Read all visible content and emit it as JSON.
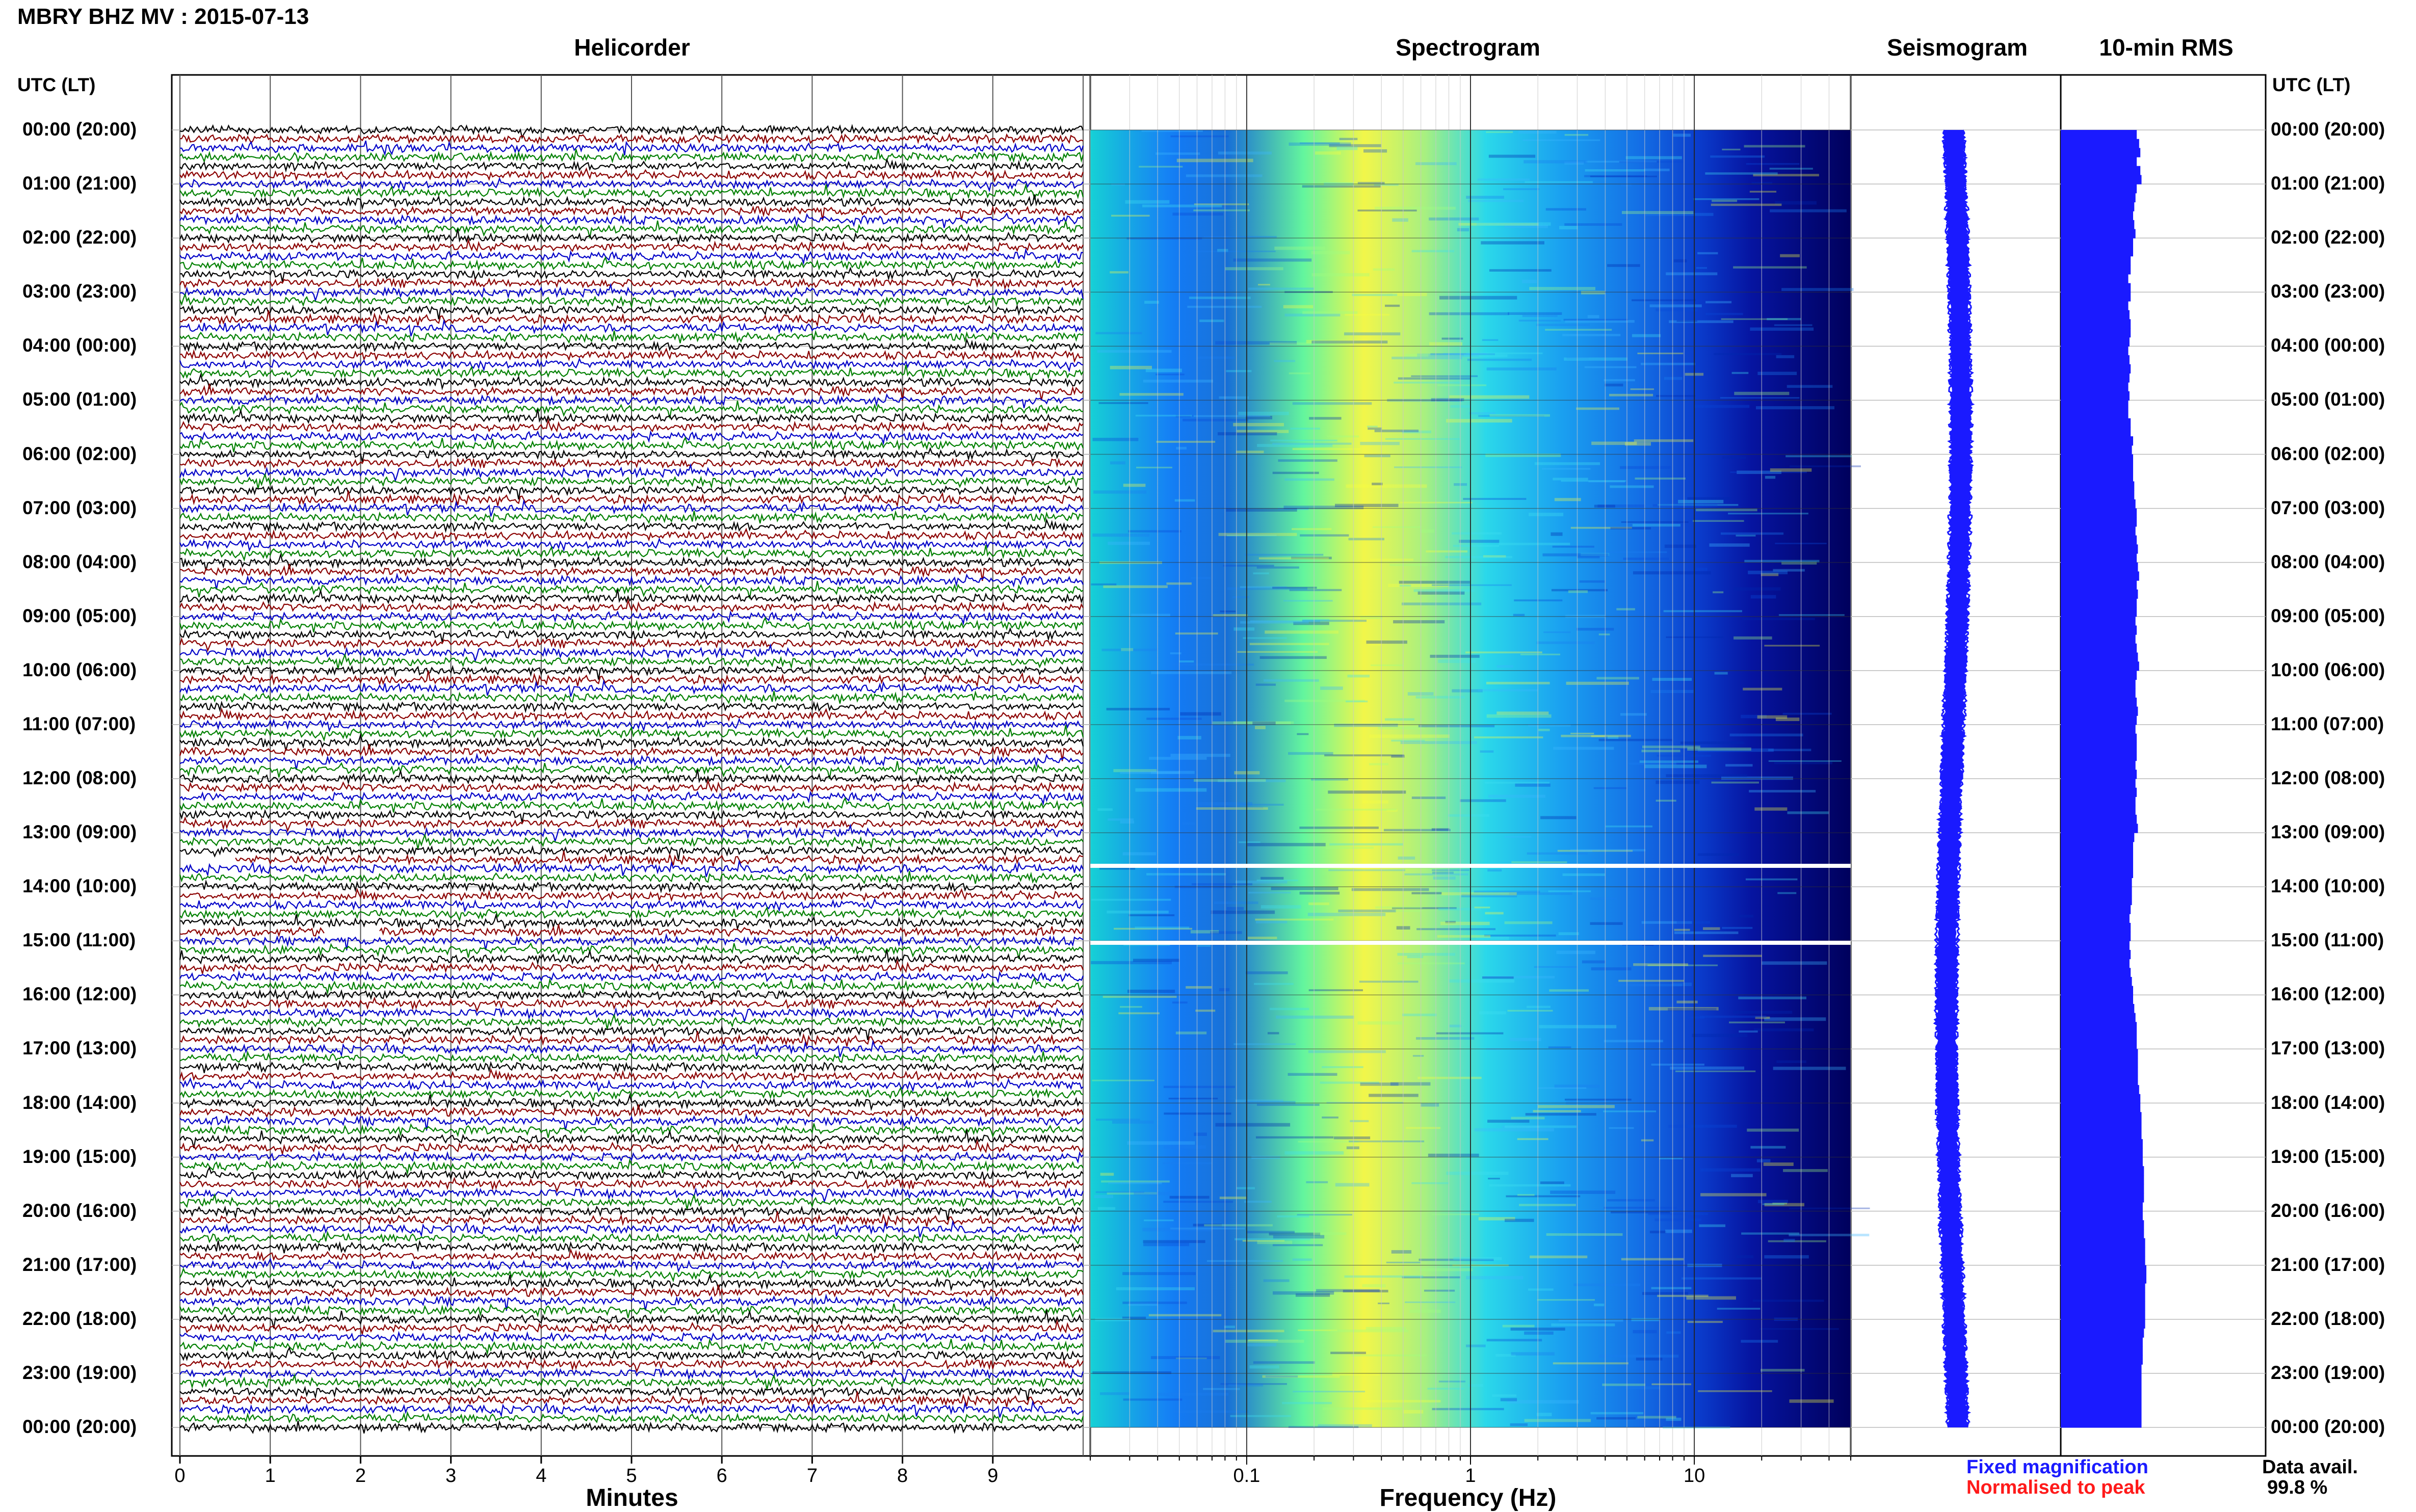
{
  "page": {
    "title": "MBRY BHZ MV : 2015-07-13",
    "left_time_header": "UTC (LT)",
    "right_time_header": "UTC (LT)"
  },
  "panels": {
    "helicorder": "Helicorder",
    "spectrogram": "Spectrogram",
    "seismogram": "Seismogram",
    "rms": "10-min RMS"
  },
  "axes": {
    "helicorder_xlabel": "Minutes",
    "spectrogram_xlabel": "Frequency (Hz)"
  },
  "legend": {
    "fixed": "Fixed magnification",
    "normalised": "Normalised to peak",
    "fixed_color": "#1a1aff",
    "normalised_color": "#ff1a1a",
    "data_avail_label": "Data avail.",
    "data_avail_value": "99.8 %"
  },
  "chart_data": [
    {
      "type": "line",
      "panel": "helicorder",
      "xlabel": "Minutes",
      "x_ticks": [
        "0",
        "1",
        "2",
        "3",
        "4",
        "5",
        "6",
        "7",
        "8",
        "9"
      ],
      "xlim": [
        0,
        10
      ],
      "traces_per_hour": 6,
      "trace_colors": [
        "#000000",
        "#8b0000",
        "#0000c8",
        "#008000"
      ],
      "gaps": [
        {
          "time": "13:30",
          "minutes": [
            0,
            0.6
          ]
        },
        {
          "time": "14:50",
          "minutes": [
            1.6,
            2.2
          ]
        }
      ]
    },
    {
      "type": "heatmap",
      "panel": "spectrogram",
      "xlabel": "Frequency (Hz)",
      "x_scale": "log",
      "x_ticks": [
        "0.1",
        "1",
        "10"
      ],
      "xlim": [
        0.02,
        50
      ],
      "colormap": [
        "#00008b",
        "#0000ff",
        "#1e90ff",
        "#00e5ee",
        "#7fff7f",
        "#ffff00"
      ],
      "band_peak_hz": [
        0.2,
        0.5
      ],
      "data_gap_rows": [
        "13:40",
        "15:00"
      ]
    },
    {
      "type": "line",
      "panel": "seismogram",
      "color": "#1a1aff"
    },
    {
      "type": "bar",
      "panel": "10-min RMS",
      "color": "#1a1aff",
      "values": [
        0.63,
        0.65,
        0.66,
        0.63,
        0.66,
        0.67,
        0.63,
        0.62,
        0.61,
        0.6,
        0.61,
        0.62,
        0.6,
        0.6,
        0.58,
        0.58,
        0.56,
        0.58,
        0.58,
        0.56,
        0.57,
        0.58,
        0.58,
        0.57,
        0.56,
        0.57,
        0.58,
        0.57,
        0.56,
        0.57,
        0.56,
        0.56,
        0.58,
        0.58,
        0.6,
        0.59,
        0.6,
        0.6,
        0.6,
        0.61,
        0.61,
        0.62,
        0.63,
        0.63,
        0.62,
        0.63,
        0.64,
        0.63,
        0.64,
        0.65,
        0.63,
        0.64,
        0.63,
        0.63,
        0.62,
        0.63,
        0.62,
        0.63,
        0.64,
        0.65,
        0.63,
        0.62,
        0.62,
        0.63,
        0.64,
        0.63,
        0.62,
        0.63,
        0.63,
        0.63,
        0.62,
        0.63,
        0.62,
        0.63,
        0.62,
        0.62,
        0.63,
        0.64,
        0.61,
        0.6,
        0.6,
        0.6,
        0.6,
        0.59,
        0.59,
        0.59,
        0.58,
        0.57,
        0.58,
        0.58,
        0.57,
        0.58,
        0.57,
        0.58,
        0.59,
        0.6,
        0.6,
        0.61,
        0.62,
        0.63,
        0.63,
        0.63,
        0.64,
        0.64,
        0.64,
        0.64,
        0.65,
        0.66,
        0.66,
        0.67,
        0.67,
        0.67,
        0.68,
        0.68,
        0.68,
        0.69,
        0.69,
        0.69,
        0.69,
        0.68,
        0.68,
        0.69,
        0.69,
        0.7,
        0.7,
        0.7,
        0.71,
        0.71,
        0.7,
        0.7,
        0.7,
        0.7,
        0.7,
        0.69,
        0.68,
        0.68,
        0.68,
        0.67,
        0.67,
        0.67,
        0.67,
        0.67,
        0.67,
        0.67
      ]
    }
  ],
  "time_rows": [
    {
      "utc_lt": "00:00 (20:00)"
    },
    {
      "utc_lt": "01:00 (21:00)"
    },
    {
      "utc_lt": "02:00 (22:00)"
    },
    {
      "utc_lt": "03:00 (23:00)"
    },
    {
      "utc_lt": "04:00 (00:00)"
    },
    {
      "utc_lt": "05:00 (01:00)"
    },
    {
      "utc_lt": "06:00 (02:00)"
    },
    {
      "utc_lt": "07:00 (03:00)"
    },
    {
      "utc_lt": "08:00 (04:00)"
    },
    {
      "utc_lt": "09:00 (05:00)"
    },
    {
      "utc_lt": "10:00 (06:00)"
    },
    {
      "utc_lt": "11:00 (07:00)"
    },
    {
      "utc_lt": "12:00 (08:00)"
    },
    {
      "utc_lt": "13:00 (09:00)"
    },
    {
      "utc_lt": "14:00 (10:00)"
    },
    {
      "utc_lt": "15:00 (11:00)"
    },
    {
      "utc_lt": "16:00 (12:00)"
    },
    {
      "utc_lt": "17:00 (13:00)"
    },
    {
      "utc_lt": "18:00 (14:00)"
    },
    {
      "utc_lt": "19:00 (15:00)"
    },
    {
      "utc_lt": "20:00 (16:00)"
    },
    {
      "utc_lt": "21:00 (17:00)"
    },
    {
      "utc_lt": "22:00 (18:00)"
    },
    {
      "utc_lt": "23:00 (19:00)"
    },
    {
      "utc_lt": "00:00 (20:00)"
    }
  ]
}
